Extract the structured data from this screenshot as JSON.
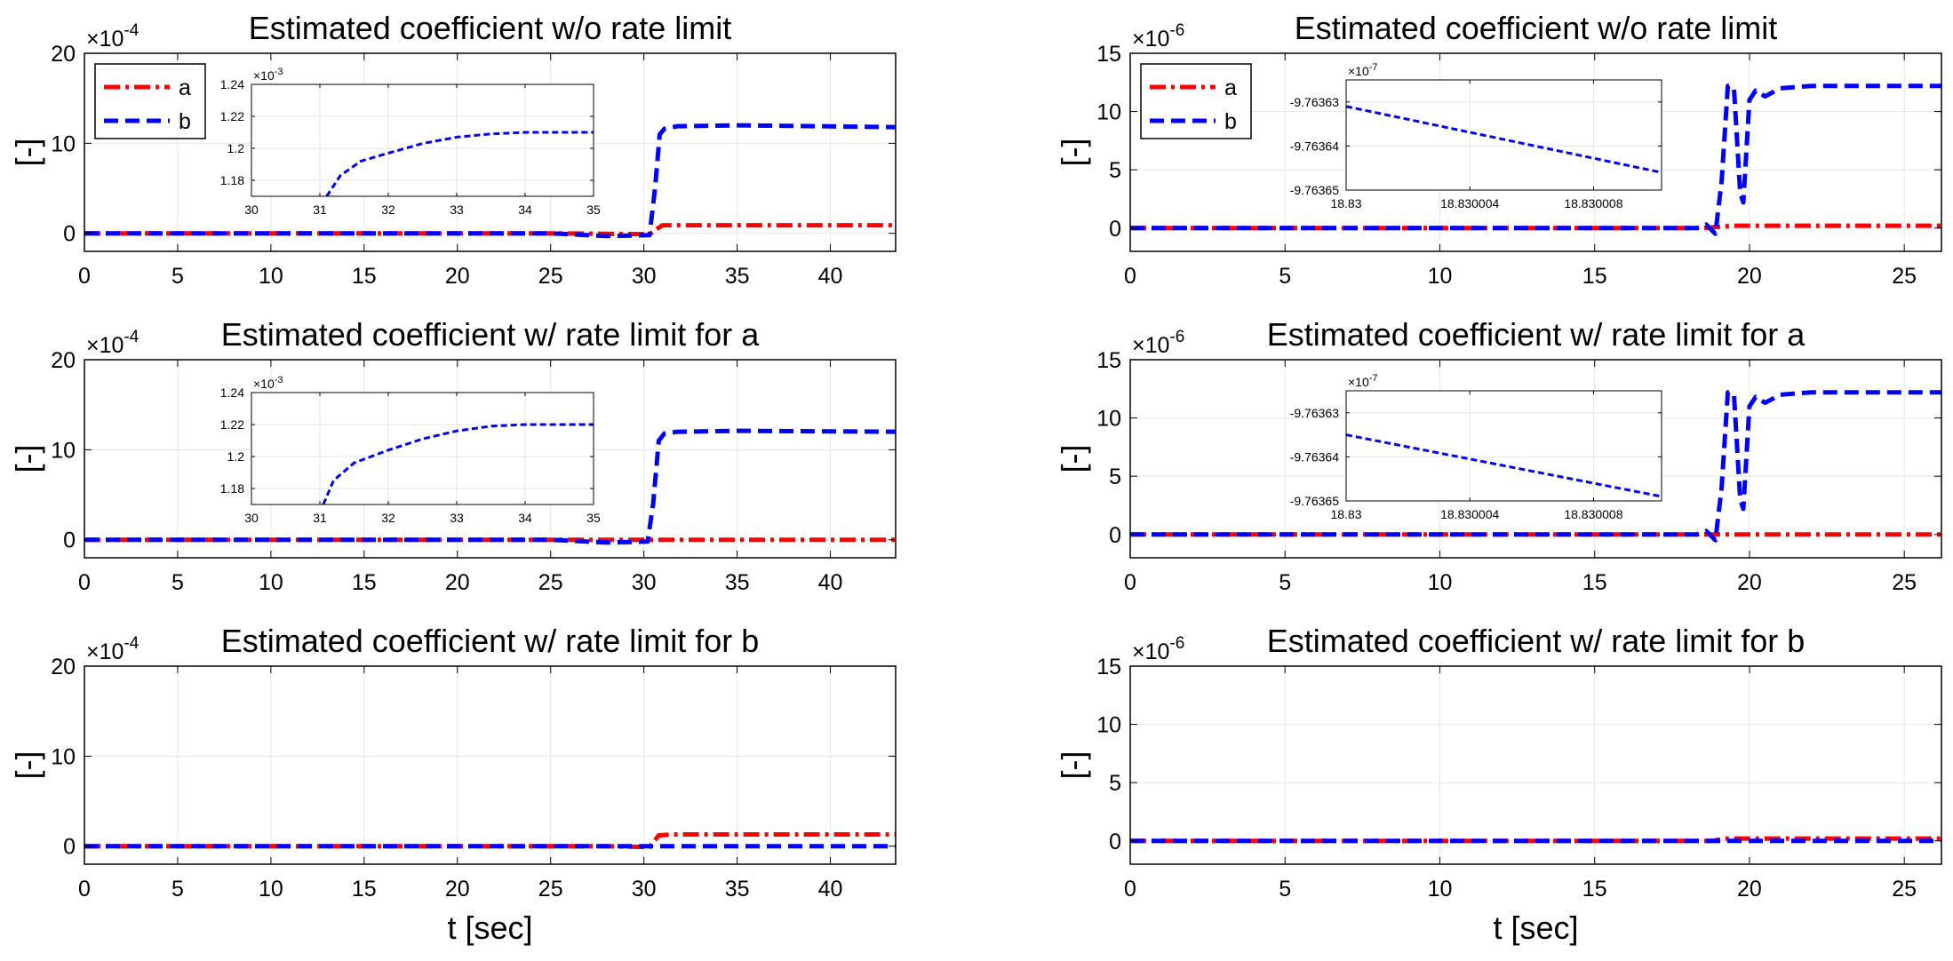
{
  "figure": {
    "xlabel": "t [sec]",
    "ylabel": "[-]",
    "legend": [
      "a",
      "b"
    ],
    "colors": {
      "a": "#ff0000",
      "b": "#0000ff",
      "grid": "#e6e6e6",
      "axis": "#000000"
    }
  },
  "chart_data": [
    {
      "type": "line",
      "title": "Estimated coefficient w/o rate limit",
      "xlim": [
        0,
        43.5
      ],
      "xticks": [
        0,
        5,
        10,
        15,
        20,
        25,
        30,
        35,
        40
      ],
      "ylim": [
        -2,
        20
      ],
      "yticks": [
        0,
        10,
        20
      ],
      "exponent": "×10",
      "exponent_power": "-4",
      "legend": true,
      "series": [
        {
          "name": "a",
          "x": [
            0,
            25,
            30.3,
            30.7,
            31,
            43.5
          ],
          "y": [
            0,
            0,
            -0.1,
            0.5,
            0.9,
            0.9
          ]
        },
        {
          "name": "b",
          "x": [
            0,
            25,
            28,
            30.3,
            30.6,
            30.85,
            31.1,
            31.8,
            35,
            43.5
          ],
          "y": [
            0,
            0,
            -0.3,
            -0.2,
            5,
            11,
            11.6,
            11.9,
            12,
            11.8
          ]
        }
      ],
      "inset": {
        "xlim": [
          30,
          35
        ],
        "xticks": [
          30,
          31,
          32,
          33,
          34,
          35
        ],
        "ylim": [
          1.17,
          1.24
        ],
        "yticks": [
          1.18,
          1.2,
          1.22,
          1.24
        ],
        "yticklabels": [
          "1.18",
          "1.2",
          "1.22",
          "1.24"
        ],
        "exponent": "×10",
        "exponent_power": "-3",
        "series": {
          "name": "b",
          "x": [
            31.1,
            31.3,
            31.6,
            32,
            32.5,
            33,
            33.5,
            34,
            35
          ],
          "y": [
            1.17,
            1.183,
            1.192,
            1.197,
            1.203,
            1.207,
            1.209,
            1.21,
            1.21
          ]
        }
      }
    },
    {
      "type": "line",
      "title": "Estimated coefficient w/o rate limit",
      "xlim": [
        0,
        26.2
      ],
      "xticks": [
        0,
        5,
        10,
        15,
        20,
        25
      ],
      "ylim": [
        -2,
        15
      ],
      "yticks": [
        0,
        5,
        10,
        15
      ],
      "exponent": "×10",
      "exponent_power": "-6",
      "legend": true,
      "series": [
        {
          "name": "a",
          "x": [
            0,
            18.5,
            19,
            19.5,
            26.2
          ],
          "y": [
            0,
            0,
            0.1,
            0.2,
            0.2
          ]
        },
        {
          "name": "b",
          "x": [
            0,
            18.3,
            18.6,
            18.9,
            19.1,
            19.3,
            19.5,
            19.7,
            19.8,
            20,
            20.2,
            20.5,
            21,
            22,
            26.2
          ],
          "y": [
            0,
            0,
            0.3,
            -0.5,
            4,
            12.2,
            12,
            3,
            2.2,
            11,
            11.8,
            11.3,
            12,
            12.2,
            12.2
          ]
        }
      ],
      "inset": {
        "xlim": [
          18.83,
          18.8300102
        ],
        "xticks": [
          18.83,
          18.830004,
          18.830008
        ],
        "ylim": [
          -9.76365,
          -9.763625
        ],
        "yticks": [
          -9.76365,
          -9.76364,
          -9.76363
        ],
        "yticklabels": [
          "-9.76365",
          "-9.76364",
          "-9.76363"
        ],
        "exponent": "×10",
        "exponent_power": "-7",
        "series": {
          "name": "b",
          "x": [
            18.83,
            18.8300102
          ],
          "y": [
            -9.763631,
            -9.763646
          ]
        }
      }
    },
    {
      "type": "line",
      "title": "Estimated coefficient w/ rate limit for a",
      "xlim": [
        0,
        43.5
      ],
      "xticks": [
        0,
        5,
        10,
        15,
        20,
        25,
        30,
        35,
        40
      ],
      "ylim": [
        -2,
        20
      ],
      "yticks": [
        0,
        10,
        20
      ],
      "exponent": "×10",
      "exponent_power": "-4",
      "legend": false,
      "series": [
        {
          "name": "a",
          "x": [
            0,
            43.5
          ],
          "y": [
            0,
            0
          ]
        },
        {
          "name": "b",
          "x": [
            0,
            25,
            28,
            30.2,
            30.5,
            30.8,
            31.1,
            31.8,
            35,
            43.5
          ],
          "y": [
            0,
            0,
            -0.3,
            -0.2,
            4,
            11,
            11.8,
            12,
            12.1,
            12
          ]
        }
      ],
      "inset": {
        "xlim": [
          30,
          35
        ],
        "xticks": [
          30,
          31,
          32,
          33,
          34,
          35
        ],
        "ylim": [
          1.17,
          1.24
        ],
        "yticks": [
          1.18,
          1.2,
          1.22,
          1.24
        ],
        "yticklabels": [
          "1.18",
          "1.2",
          "1.22",
          "1.24"
        ],
        "exponent": "×10",
        "exponent_power": "-3",
        "series": {
          "name": "b",
          "x": [
            31.05,
            31.2,
            31.5,
            32,
            32.5,
            33,
            33.5,
            34,
            35
          ],
          "y": [
            1.17,
            1.185,
            1.196,
            1.204,
            1.211,
            1.216,
            1.219,
            1.22,
            1.22
          ]
        }
      }
    },
    {
      "type": "line",
      "title": "Estimated coefficient w/ rate limit for a",
      "xlim": [
        0,
        26.2
      ],
      "xticks": [
        0,
        5,
        10,
        15,
        20,
        25
      ],
      "ylim": [
        -2,
        15
      ],
      "yticks": [
        0,
        5,
        10,
        15
      ],
      "exponent": "×10",
      "exponent_power": "-6",
      "legend": false,
      "series": [
        {
          "name": "a",
          "x": [
            0,
            26.2
          ],
          "y": [
            0,
            0
          ]
        },
        {
          "name": "b",
          "x": [
            0,
            18.3,
            18.6,
            18.9,
            19.1,
            19.3,
            19.5,
            19.7,
            19.8,
            20,
            20.2,
            20.5,
            21,
            22,
            26.2
          ],
          "y": [
            0,
            0,
            0.3,
            -0.5,
            4,
            12.2,
            12,
            3,
            2.2,
            11,
            11.8,
            11.3,
            12,
            12.2,
            12.2
          ]
        }
      ],
      "inset": {
        "xlim": [
          18.83,
          18.8300102
        ],
        "xticks": [
          18.83,
          18.830004,
          18.830008
        ],
        "ylim": [
          -9.76365,
          -9.763625
        ],
        "yticks": [
          -9.76365,
          -9.76364,
          -9.76363
        ],
        "yticklabels": [
          "-9.76365",
          "-9.76364",
          "-9.76363"
        ],
        "exponent": "×10",
        "exponent_power": "-7",
        "series": {
          "name": "b",
          "x": [
            18.83,
            18.8300102
          ],
          "y": [
            -9.763635,
            -9.763649
          ]
        }
      }
    },
    {
      "type": "line",
      "title": "Estimated coefficient w/ rate limit for b",
      "xlim": [
        0,
        43.5
      ],
      "xticks": [
        0,
        5,
        10,
        15,
        20,
        25,
        30,
        35,
        40
      ],
      "ylim": [
        -2,
        20
      ],
      "yticks": [
        0,
        10,
        20
      ],
      "exponent": "×10",
      "exponent_power": "-4",
      "legend": false,
      "series": [
        {
          "name": "a",
          "x": [
            0,
            28,
            30.3,
            30.8,
            31.5,
            43.5
          ],
          "y": [
            0,
            0,
            -0.1,
            1.2,
            1.3,
            1.3
          ]
        },
        {
          "name": "b",
          "x": [
            0,
            43.5
          ],
          "y": [
            0,
            0
          ]
        }
      ],
      "inset": null
    },
    {
      "type": "line",
      "title": "Estimated coefficient w/ rate limit for b",
      "xlim": [
        0,
        26.2
      ],
      "xticks": [
        0,
        5,
        10,
        15,
        20,
        25
      ],
      "ylim": [
        -2,
        15
      ],
      "yticks": [
        0,
        5,
        10,
        15
      ],
      "exponent": "×10",
      "exponent_power": "-6",
      "legend": false,
      "series": [
        {
          "name": "a",
          "x": [
            0,
            18.8,
            19.2,
            26.2
          ],
          "y": [
            0,
            0,
            0.2,
            0.2
          ]
        },
        {
          "name": "b",
          "x": [
            0,
            26.2
          ],
          "y": [
            0,
            0
          ]
        }
      ],
      "inset": null
    }
  ]
}
